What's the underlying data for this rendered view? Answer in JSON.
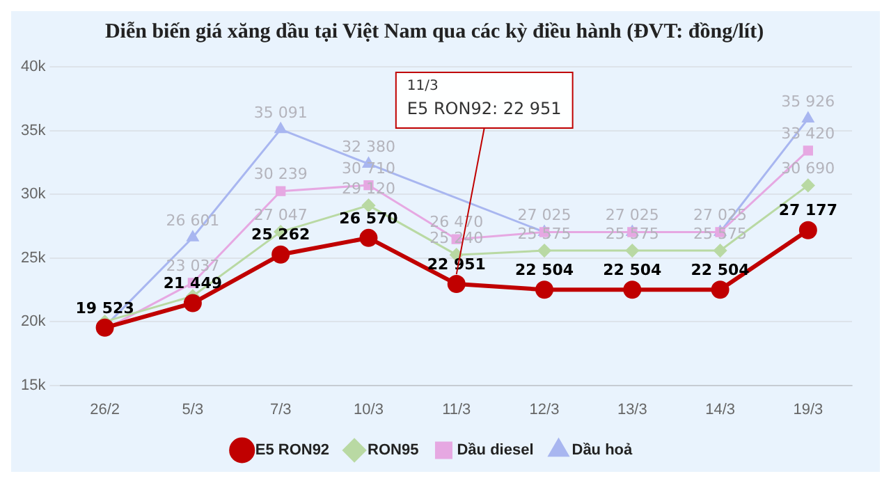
{
  "chart_data": {
    "type": "line",
    "title": "Diễn biến giá xăng dầu tại Việt Nam qua các kỳ điều hành (ĐVT: đồng/lít)",
    "categories": [
      "26/2",
      "5/3",
      "7/3",
      "10/3",
      "11/3",
      "12/3",
      "13/3",
      "14/3",
      "19/3"
    ],
    "series": [
      {
        "name": "E5 RON92",
        "color": "#c00000",
        "marker": "circle",
        "values": [
          19523,
          21449,
          25262,
          26570,
          22951,
          22504,
          22504,
          22504,
          27177
        ],
        "value_labels": [
          "19 523",
          "21 449",
          "25 262",
          "26 570",
          "22 951",
          "22 504",
          "22 504",
          "22 504",
          "27 177"
        ]
      },
      {
        "name": "RON95",
        "color": "#b9d9a3",
        "marker": "diamond",
        "values": [
          20000,
          22000,
          27047,
          29120,
          25240,
          25575,
          25575,
          25575,
          30690
        ],
        "value_labels": [
          null,
          null,
          "27 047",
          "29 120",
          "25 240",
          "25 575",
          "25 575",
          "25 575",
          "30 690"
        ]
      },
      {
        "name": "Dầu diesel",
        "color": "#e6a8e2",
        "marker": "square",
        "values": [
          19400,
          23037,
          30239,
          30710,
          26470,
          27025,
          27025,
          27025,
          33420
        ],
        "value_labels": [
          null,
          "23 037",
          "30 239",
          "30 710",
          "26 470",
          null,
          null,
          null,
          "33 420"
        ]
      },
      {
        "name": "Dầu hoả",
        "color": "#a8b6f0",
        "marker": "triangle",
        "values": [
          19600,
          26601,
          35091,
          32380,
          null,
          27025,
          27025,
          27025,
          35926
        ],
        "value_labels": [
          null,
          "26 601",
          "35 091",
          "32 380",
          null,
          "27 025",
          "27 025",
          "27 025",
          "35 926"
        ]
      }
    ],
    "ylim": [
      15000,
      40000
    ],
    "yticks": [
      {
        "value": 15000,
        "label": "15k"
      },
      {
        "value": 20000,
        "label": "20k"
      },
      {
        "value": 25000,
        "label": "25k"
      },
      {
        "value": 30000,
        "label": "30k"
      },
      {
        "value": 35000,
        "label": "35k"
      },
      {
        "value": 40000,
        "label": "40k"
      }
    ],
    "grid": "y",
    "legend": "bottom",
    "annotations": [
      {
        "text": "11/3\nE5 RON92: 22 951",
        "x": "11/3",
        "y": 22951
      }
    ]
  }
}
